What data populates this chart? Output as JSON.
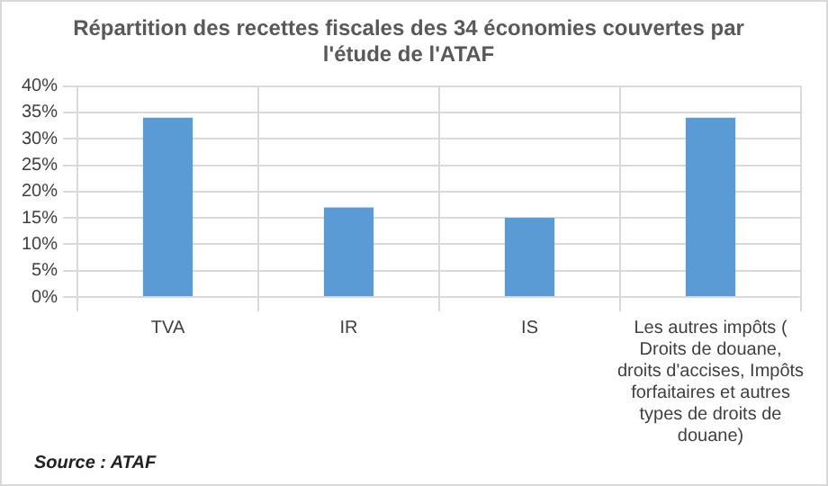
{
  "chart_data": {
    "type": "bar",
    "title": "Répartition des recettes fiscales des 34 économies couvertes par l'étude de l'ATAF",
    "categories": [
      "TVA",
      "IR",
      "IS",
      "Les autres impôts ( Droits de douane, droits d'accises, Impôts forfaitaires et autres types de droits de douane)"
    ],
    "values": [
      34,
      17,
      15,
      34
    ],
    "color": "#5b9bd5",
    "ylim": [
      0,
      40
    ],
    "yticks": [
      {
        "value": 0,
        "label": "0%"
      },
      {
        "value": 5,
        "label": "5%"
      },
      {
        "value": 10,
        "label": "10%"
      },
      {
        "value": 15,
        "label": "15%"
      },
      {
        "value": 20,
        "label": "20%"
      },
      {
        "value": 25,
        "label": "25%"
      },
      {
        "value": 30,
        "label": "30%"
      },
      {
        "value": 35,
        "label": "35%"
      },
      {
        "value": 40,
        "label": "40%"
      }
    ],
    "grid": true,
    "annotations": [
      "Source : ATAF"
    ]
  }
}
